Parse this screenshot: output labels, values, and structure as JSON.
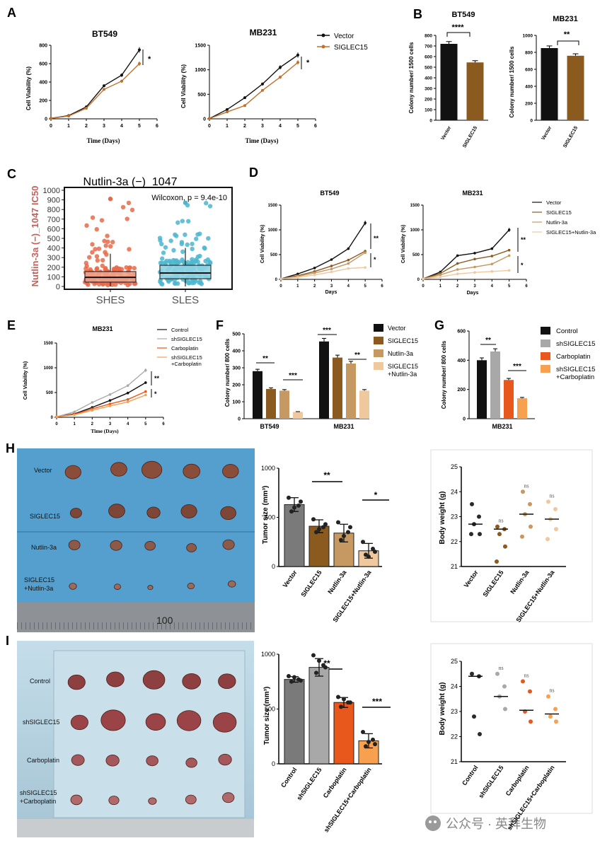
{
  "panels": {
    "A": {
      "letter": "A",
      "left_title": "BT549",
      "right_title": "MB231",
      "ylabel": "Cell Viability (%)",
      "xlabel": "Time (Days)",
      "left_yticks": [
        "0",
        "200",
        "400",
        "600",
        "800"
      ],
      "right_yticks": [
        "0",
        "500",
        "1000",
        "1500"
      ],
      "xticks": [
        "0",
        "1",
        "2",
        "3",
        "4",
        "5",
        "6"
      ],
      "legend": [
        "Vector",
        "SIGLEC15"
      ],
      "left_sig": "*",
      "right_sig": "*"
    },
    "B": {
      "letter": "B",
      "left_title": "BT549",
      "right_title": "MB231",
      "ylabel": "Colony number/ 1500 cells",
      "left_yticks": [
        "0",
        "100",
        "200",
        "300",
        "400",
        "500",
        "600",
        "700",
        "800"
      ],
      "right_yticks": [
        "0",
        "200",
        "400",
        "600",
        "800",
        "1000"
      ],
      "xcats": [
        "Vector",
        "SIGLEC15"
      ],
      "left_sig": "****",
      "right_sig": "**"
    },
    "C": {
      "letter": "C",
      "title": "Nutlin-3a (−)_1047",
      "ylabel": "Nutlin-3a (−)_1047 IC50",
      "stat": "Wilcoxon, p = 9.4e-10",
      "yticks": [
        "0",
        "100",
        "200",
        "300",
        "400",
        "500",
        "600",
        "700",
        "800",
        "900",
        "1000"
      ],
      "xcats": [
        "SHES",
        "SLES"
      ]
    },
    "D": {
      "letter": "D",
      "left_title": "BT549",
      "right_title": "MB231",
      "ylabel": "Cell Viability (%)",
      "xlabel": "Days",
      "yticks": [
        "0",
        "500",
        "1000",
        "1500"
      ],
      "xticks": [
        "0",
        "1",
        "2",
        "3",
        "4",
        "5",
        "6"
      ],
      "legend": [
        "Vector",
        "SIGLEC15",
        "Nutlin-3a",
        "SIGLEC15+Nutlin-3a"
      ],
      "sig1": "**",
      "sig2": "*"
    },
    "E": {
      "letter": "E",
      "title": "MB231",
      "ylabel": "Cell Viability (%)",
      "xlabel": "Time (Days)",
      "yticks": [
        "0",
        "500",
        "1000",
        "1500"
      ],
      "xticks": [
        "0",
        "1",
        "2",
        "3",
        "4",
        "5",
        "6"
      ],
      "legend": [
        "Control",
        "shSIGLEC15",
        "Carboplatin",
        "shSIGLEC15",
        "+Carboplatin"
      ],
      "sig1": "**",
      "sig2": "*"
    },
    "F": {
      "letter": "F",
      "ylabel": "Colony number/ 800 cells",
      "yticks": [
        "0",
        "100",
        "200",
        "300",
        "400",
        "500"
      ],
      "groups": [
        "BT549",
        "MB231"
      ],
      "legend": [
        "Vector",
        "SIGLEC15",
        "Nutlin-3a",
        "SIGLEC15",
        "+Nutlin-3a"
      ],
      "sig_a": "**",
      "sig_b": "***",
      "sig_c": "***",
      "sig_d": "**"
    },
    "G": {
      "letter": "G",
      "ylabel": "Colony number/ 800 cells",
      "yticks": [
        "0",
        "200",
        "400",
        "600"
      ],
      "group": "MB231",
      "legend": [
        "Control",
        "shSIGLEC15",
        "Carboplatin",
        "shSIGLEC15",
        "+Carboplatin"
      ],
      "sig_a": "**",
      "sig_b": "***"
    },
    "H": {
      "letter": "H",
      "photo_rows": [
        "Vector",
        "SIGLEC15",
        "Nutlin-3a",
        "SIGLEC15",
        "+Nutlin-3a"
      ],
      "ruler_number": "100",
      "tumor_ylabel": "Tumor size (mm³)",
      "tumor_yticks": [
        "0",
        "500",
        "1000"
      ],
      "xcats": [
        "Vector",
        "SIGLEC15",
        "Nutlin-3a",
        "SIGLEC15+Nutlin-3a"
      ],
      "tumor_sig1": "**",
      "tumor_sig2": "*",
      "weight_ylabel": "Body weight (g)",
      "weight_yticks": [
        "21",
        "22",
        "23",
        "24",
        "25"
      ],
      "ns": "ns"
    },
    "I": {
      "letter": "I",
      "photo_rows": [
        "Control",
        "shSIGLEC15",
        "Carboplatin",
        "shSIGLEC15",
        "+Carboplatin"
      ],
      "tumor_ylabel": "Tumor size (mm³)",
      "tumor_yticks": [
        "0",
        "500",
        "1000"
      ],
      "xcats": [
        "Control",
        "shSIGLEC15",
        "Carboplatin",
        "shSIGLEC15+Carboplatin"
      ],
      "tumor_sig1": "**",
      "tumor_sig2": "***",
      "weight_ylabel": "Body weight (g)",
      "weight_yticks": [
        "21",
        "22",
        "23",
        "24",
        "25"
      ],
      "ns": "ns"
    }
  },
  "watermark": "公众号 · 英拜生物",
  "chart_data": [
    {
      "panel": "A-BT549",
      "type": "line",
      "x": [
        0,
        1,
        2,
        3,
        4,
        5
      ],
      "series": [
        {
          "name": "Vector",
          "values": [
            5,
            35,
            130,
            360,
            475,
            750
          ]
        },
        {
          "name": "SIGLEC15",
          "values": [
            5,
            30,
            115,
            320,
            410,
            600
          ]
        }
      ],
      "ylim": [
        0,
        800
      ]
    },
    {
      "panel": "A-MB231",
      "type": "line",
      "x": [
        0,
        1,
        2,
        3,
        4,
        5
      ],
      "series": [
        {
          "name": "Vector",
          "values": [
            5,
            190,
            430,
            710,
            1050,
            1300
          ]
        },
        {
          "name": "SIGLEC15",
          "values": [
            5,
            140,
            270,
            580,
            850,
            1150
          ]
        }
      ],
      "ylim": [
        0,
        1500
      ]
    },
    {
      "panel": "B-BT549",
      "type": "bar",
      "categories": [
        "Vector",
        "SIGLEC15"
      ],
      "values": [
        720,
        545
      ],
      "ylim": [
        0,
        800
      ]
    },
    {
      "panel": "B-MB231",
      "type": "bar",
      "categories": [
        "Vector",
        "SIGLEC15"
      ],
      "values": [
        850,
        760
      ],
      "ylim": [
        0,
        1000
      ]
    },
    {
      "panel": "C",
      "type": "box",
      "categories": [
        "SHES",
        "SLES"
      ],
      "boxes": [
        {
          "q1": 45,
          "median": 95,
          "q3": 155,
          "whisker_high": 340,
          "max_outlier": 910
        },
        {
          "q1": 80,
          "median": 140,
          "q3": 220,
          "whisker_high": 400,
          "max_outlier": 870
        }
      ],
      "ylim": [
        0,
        1000
      ]
    },
    {
      "panel": "D-BT549",
      "type": "line",
      "x": [
        0,
        1,
        2,
        3,
        4,
        5
      ],
      "series": [
        {
          "name": "Vector",
          "values": [
            10,
            110,
            230,
            400,
            620,
            1140
          ]
        },
        {
          "name": "SIGLEC15",
          "values": [
            10,
            75,
            160,
            270,
            390,
            570
          ]
        },
        {
          "name": "Nutlin-3a",
          "values": [
            10,
            60,
            130,
            210,
            320,
            540
          ]
        },
        {
          "name": "SIGLEC15+Nutlin-3a",
          "values": [
            10,
            40,
            90,
            150,
            220,
            240
          ]
        }
      ],
      "ylim": [
        0,
        1500
      ]
    },
    {
      "panel": "D-MB231",
      "type": "line",
      "x": [
        0,
        1,
        2,
        3,
        4,
        5
      ],
      "series": [
        {
          "name": "Vector",
          "values": [
            10,
            150,
            480,
            530,
            620,
            1000
          ]
        },
        {
          "name": "SIGLEC15",
          "values": [
            10,
            120,
            320,
            410,
            470,
            590
          ]
        },
        {
          "name": "Nutlin-3a",
          "values": [
            10,
            90,
            200,
            250,
            310,
            480
          ]
        },
        {
          "name": "SIGLEC15+Nutlin-3a",
          "values": [
            10,
            50,
            110,
            140,
            160,
            180
          ]
        }
      ],
      "ylim": [
        0,
        1500
      ]
    },
    {
      "panel": "E",
      "type": "line",
      "x": [
        0,
        1,
        2,
        3,
        4,
        5
      ],
      "series": [
        {
          "name": "Control",
          "values": [
            10,
            70,
            200,
            340,
            490,
            700
          ]
        },
        {
          "name": "shSIGLEC15",
          "values": [
            10,
            110,
            300,
            460,
            640,
            950
          ]
        },
        {
          "name": "Carboplatin",
          "values": [
            10,
            60,
            170,
            270,
            360,
            520
          ]
        },
        {
          "name": "shSIGLEC15+Carboplatin",
          "values": [
            10,
            50,
            140,
            230,
            310,
            450
          ]
        }
      ],
      "ylim": [
        0,
        1500
      ]
    },
    {
      "panel": "F",
      "type": "bar",
      "categories": [
        "BT549",
        "MB231"
      ],
      "series": [
        {
          "name": "Vector",
          "values": [
            280,
            455
          ]
        },
        {
          "name": "SIGLEC15",
          "values": [
            175,
            360
          ]
        },
        {
          "name": "Nutlin-3a",
          "values": [
            165,
            325
          ]
        },
        {
          "name": "SIGLEC15+Nutlin-3a",
          "values": [
            40,
            165
          ]
        }
      ],
      "ylim": [
        0,
        500
      ]
    },
    {
      "panel": "G",
      "type": "bar",
      "categories": [
        "MB231"
      ],
      "series": [
        {
          "name": "Control",
          "values": [
            400
          ]
        },
        {
          "name": "shSIGLEC15",
          "values": [
            460
          ]
        },
        {
          "name": "Carboplatin",
          "values": [
            265
          ]
        },
        {
          "name": "shSIGLEC15+Carboplatin",
          "values": [
            140
          ]
        }
      ],
      "ylim": [
        0,
        600
      ]
    },
    {
      "panel": "H-tumor",
      "type": "bar",
      "categories": [
        "Vector",
        "SIGLEC15",
        "Nutlin-3a",
        "SIGLEC15+Nutlin-3a"
      ],
      "values": [
        630,
        410,
        340,
        160
      ],
      "points": [
        [
          700,
          620,
          560,
          660,
          600
        ],
        [
          480,
          400,
          350,
          430,
          380
        ],
        [
          450,
          350,
          270,
          400,
          310
        ],
        [
          250,
          180,
          120,
          150,
          100
        ]
      ],
      "ylim": [
        0,
        1000
      ]
    },
    {
      "panel": "H-weight",
      "type": "scatter",
      "categories": [
        "Vector",
        "SIGLEC15",
        "Nutlin-3a",
        "SIGLEC15+Nutlin-3a"
      ],
      "medians": [
        22.7,
        22.5,
        23.1,
        22.9
      ],
      "points": [
        [
          23.5,
          23.0,
          22.7,
          22.3,
          22.3
        ],
        [
          22.6,
          22.5,
          22.3,
          21.8,
          21.2
        ],
        [
          24.0,
          23.5,
          23.1,
          22.6,
          22.2
        ],
        [
          23.6,
          23.3,
          22.9,
          22.5,
          22.1
        ]
      ],
      "ylim": [
        21,
        25
      ]
    },
    {
      "panel": "I-tumor",
      "type": "bar",
      "categories": [
        "Control",
        "shSIGLEC15",
        "Carboplatin",
        "shSIGLEC15+Carboplatin"
      ],
      "values": [
        770,
        880,
        560,
        210
      ],
      "points": [
        [
          800,
          770,
          750,
          760,
          790
        ],
        [
          990,
          900,
          830,
          880,
          940
        ],
        [
          610,
          560,
          520,
          560,
          590
        ],
        [
          290,
          220,
          160,
          180,
          200
        ]
      ],
      "ylim": [
        0,
        1000
      ]
    },
    {
      "panel": "I-weight",
      "type": "scatter",
      "categories": [
        "Control",
        "shSIGLEC15",
        "Carboplatin",
        "shSIGLEC15+Carboplatin"
      ],
      "medians": [
        24.4,
        23.6,
        23.05,
        22.9
      ],
      "points": [
        [
          24.5,
          24.4,
          22.8,
          22.1
        ],
        [
          24.5,
          24.0,
          23.6,
          23.1
        ],
        [
          24.2,
          23.8,
          23.0,
          22.6
        ],
        [
          23.6,
          23.1,
          22.8,
          22.6
        ]
      ],
      "ylim": [
        21,
        25
      ]
    }
  ]
}
